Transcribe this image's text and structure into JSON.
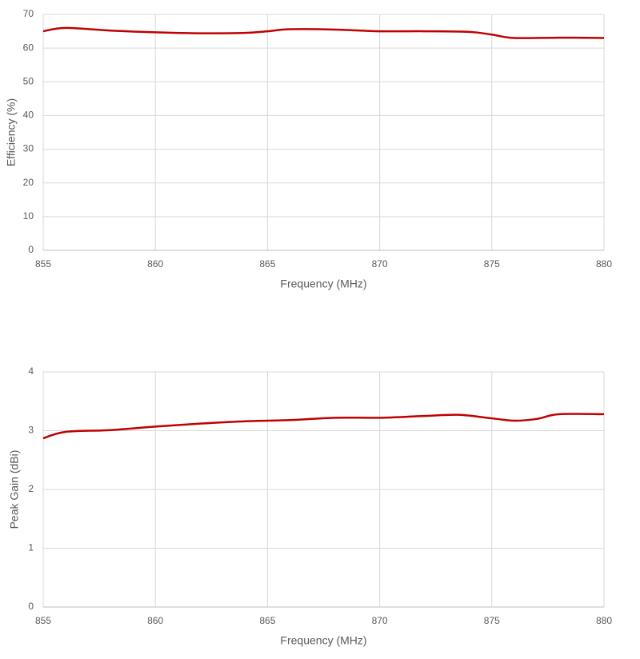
{
  "chart_data": [
    {
      "type": "line",
      "x_label": "Frequency (MHz)",
      "y_label": "Efficiency (%)",
      "xlim": [
        855,
        880
      ],
      "xticks": [
        855,
        860,
        865,
        870,
        875,
        880
      ],
      "ylim": [
        0,
        70
      ],
      "yticks": [
        0,
        10,
        20,
        30,
        40,
        50,
        60,
        70
      ],
      "grid": true,
      "series": [
        {
          "name": "Efficiency",
          "color": "#c00000",
          "x": [
            855,
            856,
            858,
            860,
            862,
            864,
            865,
            866,
            868,
            870,
            872,
            874,
            875,
            876,
            878,
            880
          ],
          "values": [
            65,
            66,
            65.2,
            64.7,
            64.4,
            64.5,
            65,
            65.6,
            65.5,
            65,
            65,
            64.8,
            64,
            63,
            63.1,
            63
          ]
        }
      ]
    },
    {
      "type": "line",
      "x_label": "Frequency (MHz)",
      "y_label": "Peak Gain (dBi)",
      "xlim": [
        855,
        880
      ],
      "xticks": [
        855,
        860,
        865,
        870,
        875,
        880
      ],
      "ylim": [
        0,
        4
      ],
      "yticks": [
        0,
        1,
        2,
        3,
        4
      ],
      "grid": true,
      "series": [
        {
          "name": "Peak Gain",
          "color": "#c00000",
          "x": [
            855,
            856,
            858,
            860,
            862,
            864,
            866,
            868,
            870,
            872,
            873.5,
            875,
            876,
            877,
            878,
            880
          ],
          "values": [
            2.87,
            2.98,
            3.01,
            3.07,
            3.12,
            3.16,
            3.18,
            3.22,
            3.22,
            3.25,
            3.27,
            3.21,
            3.17,
            3.2,
            3.28,
            3.28
          ]
        }
      ]
    }
  ]
}
